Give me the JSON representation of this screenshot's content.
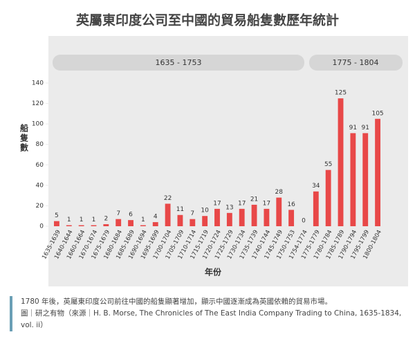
{
  "chart_data": {
    "type": "bar",
    "title": "英屬東印度公司至中國的貿易船隻數歷年統計",
    "groups": [
      "1635 - 1753",
      "1775 - 1804"
    ],
    "categories": [
      "1635-1639",
      "1640-1644",
      "1660-1664",
      "1670-1674",
      "1675-1679",
      "1680-1684",
      "1685-1689",
      "1690-1694",
      "1695-1699",
      "1700-1704",
      "1705-1709",
      "1710-1714",
      "1715-1719",
      "1720-1724",
      "1725-1729",
      "1730-1734",
      "1735-1739",
      "1740-1744",
      "1745-1749",
      "1750-1753",
      "1754-1774",
      "1775-1779",
      "1780-1784",
      "1785-1789",
      "1790-1794",
      "1795-1799",
      "1800-1804"
    ],
    "values": [
      5,
      1,
      1,
      1,
      2,
      7,
      6,
      1,
      4,
      22,
      11,
      7,
      10,
      17,
      13,
      17,
      21,
      17,
      28,
      16,
      0,
      34,
      55,
      125,
      91,
      91,
      105
    ],
    "color": "#e84848",
    "ylim": [
      0,
      140
    ],
    "yticks": [
      0,
      20,
      40,
      60,
      80,
      100,
      120,
      140
    ],
    "x_label": "年份",
    "y_label": "船隻數",
    "caption": [
      "1780 年後，英屬東印度公司前往中國的船隻顯著增加，顯示中國逐漸成為英國依賴的貿易市場。",
      "圖｜研之有物（來源｜H. B. Morse, The Chronicles of The East India Company Trading to China, 1635-1834, vol. ii）"
    ]
  }
}
